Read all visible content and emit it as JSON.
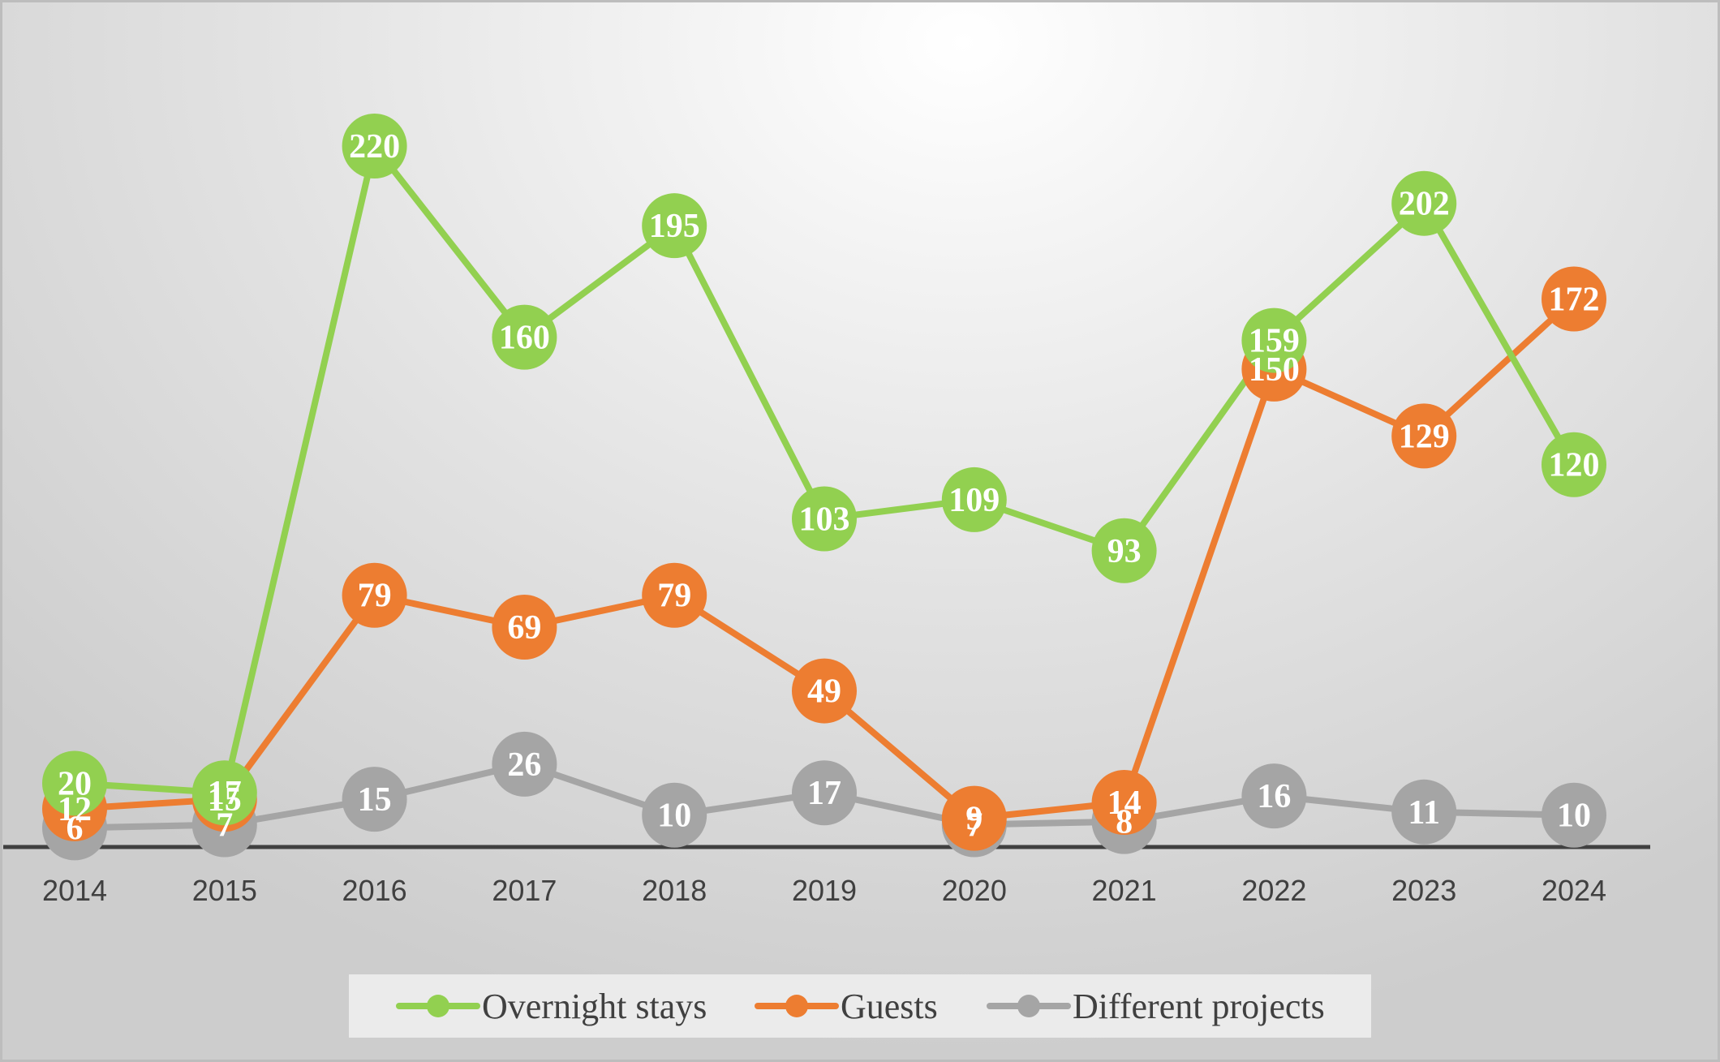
{
  "chart_data": {
    "type": "line",
    "categories": [
      "2014",
      "2015",
      "2016",
      "2017",
      "2018",
      "2019",
      "2020",
      "2021",
      "2022",
      "2023",
      "2024"
    ],
    "series": [
      {
        "name": "Overnight stays",
        "color": "#92d050",
        "values": [
          20,
          17,
          220,
          160,
          195,
          103,
          109,
          93,
          159,
          202,
          120
        ]
      },
      {
        "name": "Guests",
        "color": "#ed7d31",
        "values": [
          12,
          15,
          79,
          69,
          79,
          49,
          9,
          14,
          150,
          129,
          172
        ]
      },
      {
        "name": "Different projects",
        "color": "#a5a5a5",
        "values": [
          6,
          7,
          15,
          26,
          10,
          17,
          7,
          8,
          16,
          11,
          10
        ]
      }
    ],
    "ylim": [
      0,
      220
    ],
    "xlabel": "",
    "ylabel": "",
    "title": "",
    "grid": false,
    "legend": "bottom"
  }
}
